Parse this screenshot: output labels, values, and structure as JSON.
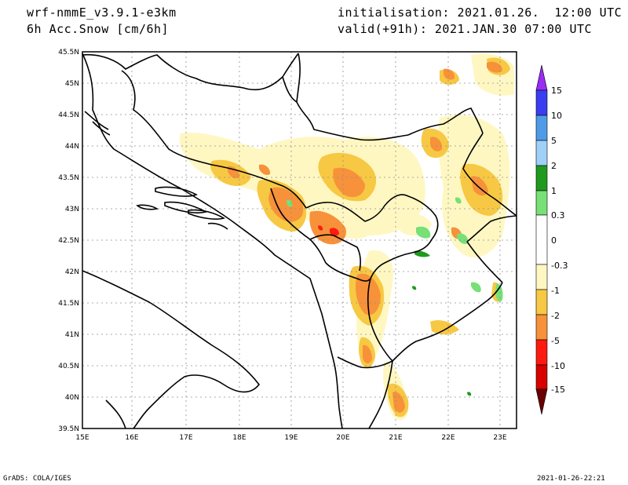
{
  "header": {
    "model": "wrf-nmmE_v3.9.1-e3km",
    "variable": "6h Acc.Snow [cm/6h]",
    "init_label": "initialisation:",
    "init_value": "2021.01.26.  12:00 UTC",
    "valid_label": "valid(+91h):",
    "valid_value": "2021.JAN.30 07:00 UTC"
  },
  "map": {
    "lon_labels": [
      "15E",
      "16E",
      "17E",
      "18E",
      "19E",
      "20E",
      "21E",
      "22E",
      "23E"
    ],
    "lat_labels": [
      "39.5N",
      "40N",
      "40.5N",
      "41N",
      "41.5N",
      "42N",
      "42.5N",
      "43N",
      "43.5N",
      "44N",
      "44.5N",
      "45N",
      "45.5N"
    ]
  },
  "colorbar": {
    "levels": [
      "15",
      "10",
      "5",
      "2",
      "1",
      "0.3",
      "0",
      "-0.3",
      "-1",
      "-2",
      "-5",
      "-10",
      "-15"
    ],
    "colors": [
      "#9a2bf5",
      "#3a3df0",
      "#4f9be8",
      "#9fd0f8",
      "#1f9a1f",
      "#77e077",
      "#ffffff",
      "#fff7c2",
      "#f7c843",
      "#f7913a",
      "#ff1a10",
      "#d80000",
      "#a00000",
      "#6a0000"
    ]
  },
  "footer": {
    "left": "GrADS: COLA/IGES",
    "right": "2021-01-26-22:21"
  }
}
